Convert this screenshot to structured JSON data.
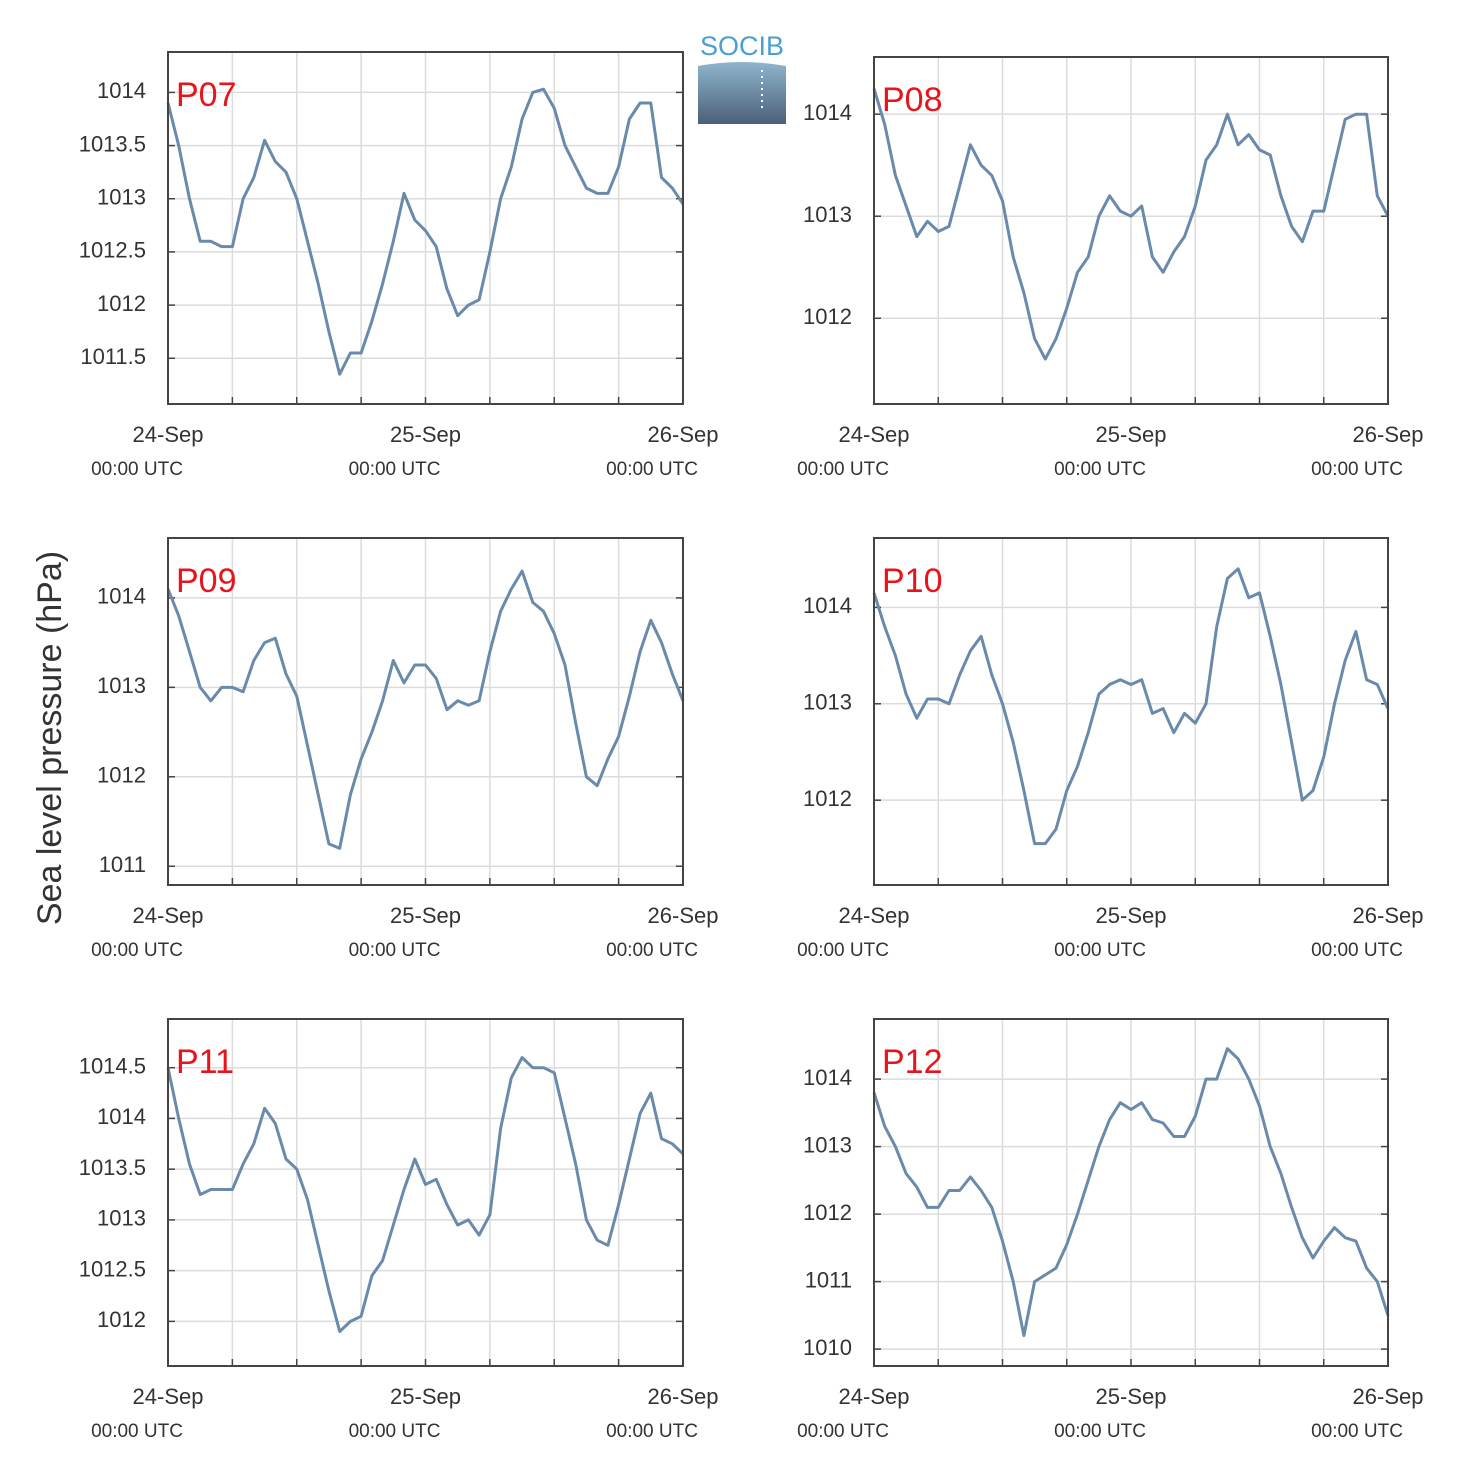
{
  "ylabel": "Sea level pressure (hPa)",
  "logo": "SOCIB",
  "chart_data": [
    {
      "type": "line",
      "title": "P07",
      "x": [
        0,
        1,
        2,
        3,
        4,
        5,
        6,
        7,
        8,
        9,
        10,
        11,
        12,
        13,
        14,
        15,
        16,
        17,
        18,
        19,
        20,
        21,
        22,
        23,
        24,
        25,
        26,
        27,
        28,
        29,
        30,
        31,
        32,
        33,
        34,
        35,
        36,
        37,
        38,
        39,
        40,
        41,
        42,
        43,
        44,
        45,
        46,
        47,
        48
      ],
      "series": [
        {
          "name": "P07",
          "color": "#6a8aab",
          "values": [
            1013.9,
            1013.5,
            1013.0,
            1012.6,
            1012.6,
            1012.55,
            1012.55,
            1013.0,
            1013.2,
            1013.55,
            1013.35,
            1013.25,
            1013.0,
            1012.6,
            1012.2,
            1011.75,
            1011.35,
            1011.55,
            1011.55,
            1011.85,
            1012.2,
            1012.6,
            1013.05,
            1012.8,
            1012.7,
            1012.55,
            1012.15,
            1011.9,
            1012.0,
            1012.05,
            1012.5,
            1013.0,
            1013.3,
            1013.75,
            1014.0,
            1014.03,
            1013.85,
            1013.5,
            1013.3,
            1013.1,
            1013.05,
            1013.05,
            1013.3,
            1013.75,
            1013.9,
            1013.9,
            1013.2,
            1013.1,
            1012.95
          ]
        }
      ],
      "xlim": [
        0,
        48
      ],
      "xticks": [
        {
          "value": 0,
          "label": "24-Sep",
          "sublabel": "00:00 UTC"
        },
        {
          "value": 24,
          "label": "25-Sep",
          "sublabel": "00:00 UTC"
        },
        {
          "value": 48,
          "label": "26-Sep",
          "sublabel": "00:00 UTC"
        }
      ],
      "xminor": [
        6,
        12,
        18,
        30,
        36,
        42
      ],
      "ylim": [
        1011.07,
        1014.38
      ],
      "yticks": [
        1011.5,
        1012,
        1012.5,
        1013,
        1013.5,
        1014
      ],
      "grid": true
    },
    {
      "type": "line",
      "title": "P08",
      "x": [
        0,
        1,
        2,
        3,
        4,
        5,
        6,
        7,
        8,
        9,
        10,
        11,
        12,
        13,
        14,
        15,
        16,
        17,
        18,
        19,
        20,
        21,
        22,
        23,
        24,
        25,
        26,
        27,
        28,
        29,
        30,
        31,
        32,
        33,
        34,
        35,
        36,
        37,
        38,
        39,
        40,
        41,
        42,
        43,
        44,
        45,
        46,
        47,
        48
      ],
      "series": [
        {
          "name": "P08",
          "color": "#6a8aab",
          "values": [
            1014.25,
            1013.9,
            1013.4,
            1013.1,
            1012.8,
            1012.95,
            1012.85,
            1012.9,
            1013.3,
            1013.7,
            1013.5,
            1013.4,
            1013.15,
            1012.6,
            1012.25,
            1011.8,
            1011.6,
            1011.8,
            1012.1,
            1012.45,
            1012.6,
            1013.0,
            1013.2,
            1013.05,
            1013.0,
            1013.1,
            1012.6,
            1012.45,
            1012.65,
            1012.8,
            1013.1,
            1013.55,
            1013.7,
            1014.0,
            1013.7,
            1013.8,
            1013.65,
            1013.6,
            1013.2,
            1012.9,
            1012.75,
            1013.05,
            1013.05,
            1013.5,
            1013.95,
            1014.0,
            1014.0,
            1013.2,
            1013.0
          ]
        }
      ],
      "xlim": [
        0,
        48
      ],
      "xticks": [
        {
          "value": 0,
          "label": "24-Sep",
          "sublabel": "00:00 UTC"
        },
        {
          "value": 24,
          "label": "25-Sep",
          "sublabel": "00:00 UTC"
        },
        {
          "value": 48,
          "label": "26-Sep",
          "sublabel": "00:00 UTC"
        }
      ],
      "xminor": [
        6,
        12,
        18,
        30,
        36,
        42
      ],
      "ylim": [
        1011.16,
        1014.56
      ],
      "yticks": [
        1012,
        1013,
        1014
      ],
      "grid": true
    },
    {
      "type": "line",
      "title": "P09",
      "x": [
        0,
        1,
        2,
        3,
        4,
        5,
        6,
        7,
        8,
        9,
        10,
        11,
        12,
        13,
        14,
        15,
        16,
        17,
        18,
        19,
        20,
        21,
        22,
        23,
        24,
        25,
        26,
        27,
        28,
        29,
        30,
        31,
        32,
        33,
        34,
        35,
        36,
        37,
        38,
        39,
        40,
        41,
        42,
        43,
        44,
        45,
        46,
        47,
        48
      ],
      "series": [
        {
          "name": "P09",
          "color": "#6a8aab",
          "values": [
            1014.1,
            1013.8,
            1013.4,
            1013.0,
            1012.85,
            1013.0,
            1013.0,
            1012.95,
            1013.3,
            1013.5,
            1013.55,
            1013.15,
            1012.9,
            1012.35,
            1011.8,
            1011.25,
            1011.2,
            1011.8,
            1012.2,
            1012.5,
            1012.85,
            1013.3,
            1013.05,
            1013.25,
            1013.25,
            1013.1,
            1012.75,
            1012.85,
            1012.8,
            1012.85,
            1013.4,
            1013.85,
            1014.1,
            1014.3,
            1013.95,
            1013.85,
            1013.6,
            1013.25,
            1012.6,
            1012.0,
            1011.9,
            1012.2,
            1012.45,
            1012.9,
            1013.4,
            1013.75,
            1013.5,
            1013.15,
            1012.85
          ]
        }
      ],
      "xlim": [
        0,
        48
      ],
      "xticks": [
        {
          "value": 0,
          "label": "24-Sep",
          "sublabel": "00:00 UTC"
        },
        {
          "value": 24,
          "label": "25-Sep",
          "sublabel": "00:00 UTC"
        },
        {
          "value": 48,
          "label": "26-Sep",
          "sublabel": "00:00 UTC"
        }
      ],
      "xminor": [
        6,
        12,
        18,
        30,
        36,
        42
      ],
      "ylim": [
        1010.79,
        1014.67
      ],
      "yticks": [
        1011,
        1012,
        1013,
        1014
      ],
      "grid": true
    },
    {
      "type": "line",
      "title": "P10",
      "x": [
        0,
        1,
        2,
        3,
        4,
        5,
        6,
        7,
        8,
        9,
        10,
        11,
        12,
        13,
        14,
        15,
        16,
        17,
        18,
        19,
        20,
        21,
        22,
        23,
        24,
        25,
        26,
        27,
        28,
        29,
        30,
        31,
        32,
        33,
        34,
        35,
        36,
        37,
        38,
        39,
        40,
        41,
        42,
        43,
        44,
        45,
        46,
        47,
        48
      ],
      "series": [
        {
          "name": "P10",
          "color": "#6a8aab",
          "values": [
            1014.15,
            1013.8,
            1013.5,
            1013.1,
            1012.85,
            1013.05,
            1013.05,
            1013.0,
            1013.3,
            1013.55,
            1013.7,
            1013.3,
            1013.0,
            1012.6,
            1012.1,
            1011.55,
            1011.55,
            1011.7,
            1012.1,
            1012.35,
            1012.7,
            1013.1,
            1013.2,
            1013.25,
            1013.2,
            1013.25,
            1012.9,
            1012.95,
            1012.7,
            1012.9,
            1012.8,
            1013.0,
            1013.8,
            1014.3,
            1014.4,
            1014.1,
            1014.15,
            1013.7,
            1013.2,
            1012.6,
            1012.0,
            1012.1,
            1012.45,
            1013.0,
            1013.45,
            1013.75,
            1013.25,
            1013.2,
            1012.95
          ]
        }
      ],
      "xlim": [
        0,
        48
      ],
      "xticks": [
        {
          "value": 0,
          "label": "24-Sep",
          "sublabel": "00:00 UTC"
        },
        {
          "value": 24,
          "label": "25-Sep",
          "sublabel": "00:00 UTC"
        },
        {
          "value": 48,
          "label": "26-Sep",
          "sublabel": "00:00 UTC"
        }
      ],
      "xminor": [
        6,
        12,
        18,
        30,
        36,
        42
      ],
      "ylim": [
        1011.12,
        1014.72
      ],
      "yticks": [
        1012,
        1013,
        1014
      ],
      "grid": true
    },
    {
      "type": "line",
      "title": "P11",
      "x": [
        0,
        1,
        2,
        3,
        4,
        5,
        6,
        7,
        8,
        9,
        10,
        11,
        12,
        13,
        14,
        15,
        16,
        17,
        18,
        19,
        20,
        21,
        22,
        23,
        24,
        25,
        26,
        27,
        28,
        29,
        30,
        31,
        32,
        33,
        34,
        35,
        36,
        37,
        38,
        39,
        40,
        41,
        42,
        43,
        44,
        45,
        46,
        47,
        48
      ],
      "series": [
        {
          "name": "P11",
          "color": "#6a8aab",
          "values": [
            1014.5,
            1014.0,
            1013.55,
            1013.25,
            1013.3,
            1013.3,
            1013.3,
            1013.55,
            1013.75,
            1014.1,
            1013.95,
            1013.6,
            1013.5,
            1013.2,
            1012.75,
            1012.3,
            1011.9,
            1012.0,
            1012.05,
            1012.45,
            1012.6,
            1012.95,
            1013.3,
            1013.6,
            1013.35,
            1013.4,
            1013.15,
            1012.95,
            1013.0,
            1012.85,
            1013.05,
            1013.9,
            1014.4,
            1014.6,
            1014.5,
            1014.5,
            1014.45,
            1014.0,
            1013.55,
            1013.0,
            1012.8,
            1012.75,
            1013.15,
            1013.6,
            1014.05,
            1014.25,
            1013.8,
            1013.75,
            1013.65
          ]
        }
      ],
      "xlim": [
        0,
        48
      ],
      "xticks": [
        {
          "value": 0,
          "label": "24-Sep",
          "sublabel": "00:00 UTC"
        },
        {
          "value": 24,
          "label": "25-Sep",
          "sublabel": "00:00 UTC"
        },
        {
          "value": 48,
          "label": "26-Sep",
          "sublabel": "00:00 UTC"
        }
      ],
      "xminor": [
        6,
        12,
        18,
        30,
        36,
        42
      ],
      "ylim": [
        1011.56,
        1014.98
      ],
      "yticks": [
        1012,
        1012.5,
        1013,
        1013.5,
        1014,
        1014.5
      ],
      "grid": true
    },
    {
      "type": "line",
      "title": "P12",
      "x": [
        0,
        1,
        2,
        3,
        4,
        5,
        6,
        7,
        8,
        9,
        10,
        11,
        12,
        13,
        14,
        15,
        16,
        17,
        18,
        19,
        20,
        21,
        22,
        23,
        24,
        25,
        26,
        27,
        28,
        29,
        30,
        31,
        32,
        33,
        34,
        35,
        36,
        37,
        38,
        39,
        40,
        41,
        42,
        43,
        44,
        45,
        46,
        47,
        48
      ],
      "series": [
        {
          "name": "P12",
          "color": "#6a8aab",
          "values": [
            1013.8,
            1013.3,
            1013.0,
            1012.6,
            1012.4,
            1012.1,
            1012.1,
            1012.35,
            1012.35,
            1012.55,
            1012.35,
            1012.1,
            1011.6,
            1011.0,
            1010.2,
            1011.0,
            1011.1,
            1011.2,
            1011.55,
            1012.0,
            1012.5,
            1013.0,
            1013.4,
            1013.65,
            1013.55,
            1013.65,
            1013.4,
            1013.35,
            1013.15,
            1013.15,
            1013.45,
            1014.0,
            1014.0,
            1014.45,
            1014.3,
            1014.0,
            1013.6,
            1013.0,
            1012.6,
            1012.1,
            1011.65,
            1011.35,
            1011.6,
            1011.8,
            1011.65,
            1011.6,
            1011.2,
            1011.0,
            1010.5
          ]
        }
      ],
      "xlim": [
        0,
        48
      ],
      "xticks": [
        {
          "value": 0,
          "label": "24-Sep",
          "sublabel": "00:00 UTC"
        },
        {
          "value": 24,
          "label": "25-Sep",
          "sublabel": "00:00 UTC"
        },
        {
          "value": 48,
          "label": "26-Sep",
          "sublabel": "00:00 UTC"
        }
      ],
      "xminor": [
        6,
        12,
        18,
        30,
        36,
        42
      ],
      "ylim": [
        1009.75,
        1014.89
      ],
      "yticks": [
        1010,
        1011,
        1012,
        1013,
        1014
      ],
      "grid": true
    }
  ]
}
